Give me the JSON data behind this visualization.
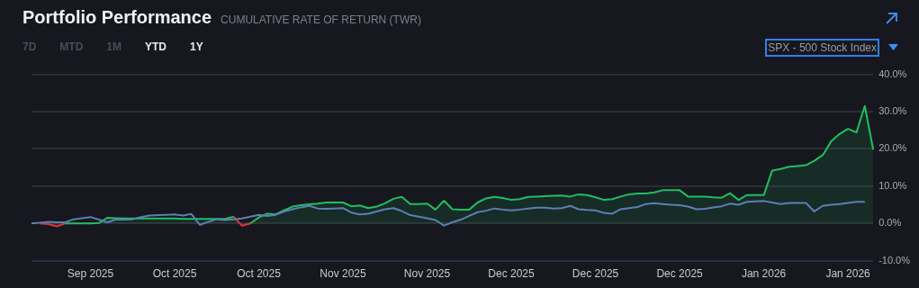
{
  "chart_data": {
    "type": "area",
    "title": "Portfolio Performance",
    "subtitle": "CUMULATIVE RATE OF RETURN (TWR)",
    "annotations": [
      "7D",
      "MTD",
      "1M",
      "YTD",
      "1Y",
      "SPX - 500 Stock Index"
    ],
    "categories": [
      null,
      null,
      null,
      null,
      null,
      null,
      null,
      "Sep 2025",
      null,
      null,
      null,
      null,
      null,
      null,
      null,
      null,
      null,
      "Oct 2025",
      null,
      null,
      null,
      null,
      null,
      null,
      null,
      null,
      null,
      "Oct 2025",
      null,
      null,
      null,
      null,
      null,
      null,
      null,
      null,
      null,
      "Nov 2025",
      null,
      null,
      null,
      null,
      null,
      null,
      null,
      null,
      null,
      "Nov 2025",
      null,
      null,
      null,
      null,
      null,
      null,
      null,
      null,
      null,
      "Dec 2025",
      null,
      null,
      null,
      null,
      null,
      null,
      null,
      null,
      null,
      "Dec 2025",
      null,
      null,
      null,
      null,
      null,
      null,
      null,
      null,
      null,
      "Dec 2025",
      null,
      null,
      null,
      null,
      null,
      null,
      null,
      null,
      null,
      "Jan 2026",
      null,
      null,
      null,
      null,
      null,
      null,
      null,
      null,
      null,
      "Jan 2026",
      null,
      null,
      null
    ],
    "series": [
      {
        "color": "#1fbf5f",
        "values": [
          null,
          0,
          -0.2,
          -0.8,
          0,
          0,
          0,
          0,
          0.1,
          1.5,
          1.4,
          1.3,
          1.3,
          1.3,
          1.3,
          1.3,
          1.3,
          1.3,
          1.2,
          1.2,
          1.2,
          1.2,
          1.2,
          1.2,
          1.8,
          -0.6,
          0,
          1.6,
          2.6,
          2.4,
          3.5,
          4.5,
          4.9,
          5.1,
          5.3,
          5.6,
          5.6,
          5.6,
          4.6,
          4.8,
          4.1,
          4.5,
          5.4,
          6.6,
          7.1,
          5.2,
          5.2,
          5.3,
          3.7,
          6.1,
          3.8,
          3.7,
          3.7,
          5.6,
          6.7,
          7.1,
          6.8,
          6.3,
          6.5,
          7.1,
          7.2,
          7.3,
          7.4,
          7.5,
          7.2,
          7.8,
          7.6,
          7.0,
          6.3,
          6.5,
          7.2,
          7.8,
          8.0,
          8.0,
          8.3,
          8.9,
          8.9,
          8.9,
          7.2,
          7.2,
          7.2,
          7.0,
          6.9,
          8.1,
          6.3,
          7.6,
          7.6,
          7.6,
          14.2,
          14.6,
          15.2,
          15.4,
          15.6,
          16.8,
          18.3,
          22.0,
          24.0,
          25.4,
          24.4,
          31.5,
          19.8
        ],
        "colors": [
          "#1fbf5f",
          "#1fbf5f",
          "#e0343c",
          "#e0343c",
          "#1fbf5f",
          "#1fbf5f",
          "#1fbf5f",
          "#1fbf5f",
          "#1fbf5f",
          "#1fbf5f",
          "#1fbf5f",
          "#1fbf5f",
          "#1fbf5f",
          "#1fbf5f",
          "#1fbf5f",
          "#1fbf5f",
          "#1fbf5f",
          "#1fbf5f",
          "#1fbf5f",
          "#1fbf5f",
          "#1fbf5f",
          "#1fbf5f",
          "#1fbf5f",
          "#1fbf5f",
          "#1fbf5f",
          "#e0343c",
          "#1fbf5f",
          "#1fbf5f",
          "#1fbf5f",
          "#1fbf5f",
          "#1fbf5f",
          "#1fbf5f",
          "#1fbf5f",
          "#1fbf5f",
          "#1fbf5f",
          "#1fbf5f",
          "#1fbf5f",
          "#1fbf5f",
          "#1fbf5f",
          "#1fbf5f",
          "#1fbf5f",
          "#1fbf5f",
          "#1fbf5f",
          "#1fbf5f",
          "#1fbf5f",
          "#1fbf5f",
          "#1fbf5f",
          "#1fbf5f",
          "#1fbf5f",
          "#1fbf5f",
          "#1fbf5f",
          "#1fbf5f",
          "#1fbf5f",
          "#1fbf5f",
          "#1fbf5f",
          "#1fbf5f",
          "#1fbf5f",
          "#1fbf5f",
          "#1fbf5f",
          "#1fbf5f",
          "#1fbf5f",
          "#1fbf5f",
          "#1fbf5f",
          "#1fbf5f",
          "#1fbf5f",
          "#1fbf5f",
          "#1fbf5f",
          "#1fbf5f",
          "#1fbf5f",
          "#1fbf5f",
          "#1fbf5f",
          "#1fbf5f",
          "#1fbf5f",
          "#1fbf5f",
          "#1fbf5f",
          "#1fbf5f",
          "#1fbf5f",
          "#1fbf5f",
          "#1fbf5f",
          "#1fbf5f",
          "#1fbf5f",
          "#1fbf5f",
          "#1fbf5f",
          "#1fbf5f",
          "#1fbf5f",
          "#1fbf5f",
          "#1fbf5f",
          "#1fbf5f",
          "#1fbf5f",
          "#1fbf5f",
          "#1fbf5f",
          "#1fbf5f",
          "#1fbf5f",
          "#1fbf5f",
          "#1fbf5f",
          "#1fbf5f",
          "#1fbf5f",
          "#1fbf5f",
          "#1fbf5f",
          "#1fbf5f",
          "#1fbf5f"
        ]
      },
      {
        "type": "line",
        "color": "#5b7fb3",
        "values": [
          0,
          0.2,
          0.4,
          0.3,
          0.3,
          1.1,
          1.4,
          1.7,
          1.0,
          0.3,
          1.0,
          1.0,
          1.1,
          1.7,
          2.1,
          2.2,
          2.3,
          2.4,
          2.1,
          2.5,
          -0.4,
          0.4,
          1.1,
          0.9,
          1.1,
          1.3,
          1.8,
          2.3,
          2.0,
          2.3,
          3.2,
          3.8,
          4.3,
          4.7,
          4.0,
          3.9,
          4.0,
          4.1,
          2.9,
          2.4,
          2.6,
          3.2,
          3.8,
          4.1,
          3.3,
          2.2,
          1.8,
          1.4,
          0.9,
          -0.6,
          0.3,
          1.0,
          2.0,
          3.0,
          3.4,
          4.0,
          3.7,
          3.5,
          3.7,
          4.0,
          4.2,
          4.2,
          4.0,
          4.1,
          4.7,
          3.8,
          3.6,
          3.5,
          2.8,
          2.6,
          3.8,
          4.1,
          4.4,
          5.2,
          5.4,
          5.2,
          5.0,
          4.9,
          4.5,
          3.8,
          3.9,
          4.3,
          4.6,
          5.3,
          5.0,
          5.8,
          5.9,
          6.0,
          5.6,
          5.2,
          5.5,
          5.5,
          5.5,
          3.2,
          4.7,
          5.0,
          5.2,
          5.5,
          5.8,
          5.8,
          null
        ]
      }
    ],
    "ylim": [
      -10,
      40
    ],
    "yticks": [
      {
        "value": -10,
        "label": "-10.0%"
      },
      {
        "value": 0,
        "label": "0.0%"
      },
      {
        "value": 10,
        "label": "10.0%"
      },
      {
        "value": 20,
        "label": "20.0%"
      },
      {
        "value": 30,
        "label": "30.0%"
      },
      {
        "value": 40,
        "label": "40.0%"
      }
    ],
    "grid": "y",
    "legend": false,
    "marker": "none",
    "line_style": "solid"
  }
}
